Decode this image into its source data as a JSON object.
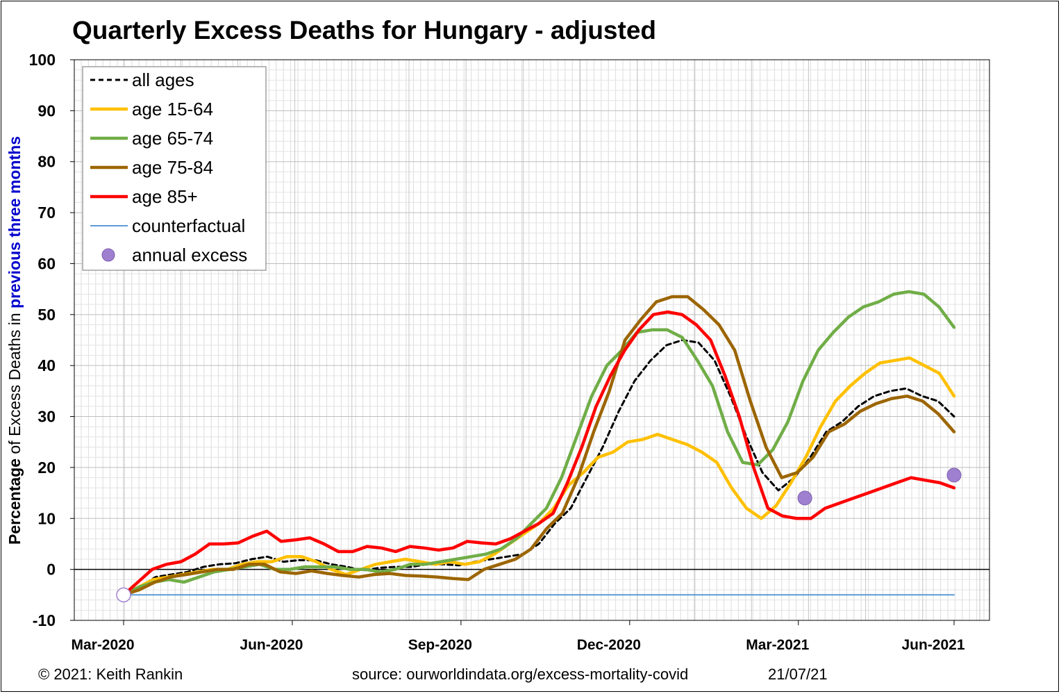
{
  "chart_data": {
    "type": "line",
    "title": "Quarterly Excess Deaths for Hungary - adjusted",
    "ylabel": {
      "bold_part": "Percentage",
      "mid1": " of Excess Deaths in ",
      "highlight": "previous three months"
    },
    "ylim": [
      -10,
      100
    ],
    "yticks": [
      -10,
      0,
      10,
      20,
      30,
      40,
      50,
      60,
      70,
      80,
      90,
      100
    ],
    "xlim": [
      0,
      64
    ],
    "xticks": [
      {
        "label": "Mar-2020",
        "x": 0
      },
      {
        "label": "Jun-2020",
        "x": 13
      },
      {
        "label": "Sep-2020",
        "x": 26
      },
      {
        "label": "Dec-2020",
        "x": 39
      },
      {
        "label": "Mar-2021",
        "x": 52
      },
      {
        "label": "Jun-2021",
        "x": 64
      }
    ],
    "grid": true,
    "legend_position": "top-left",
    "series": [
      {
        "name": "all ages",
        "color": "#000000",
        "style": "dashed",
        "values": [
          -5,
          -3.5,
          -1.5,
          -1,
          -0.5,
          0.5,
          1,
          1.2,
          2,
          2.5,
          1.5,
          1.8,
          1.8,
          1,
          0.5,
          -0.2,
          0.3,
          0.5,
          0.5,
          1,
          1,
          0.8,
          1.5,
          2,
          2.5,
          3,
          5,
          9,
          12,
          18,
          24,
          31,
          37,
          41,
          44,
          45,
          44.5,
          41,
          34,
          26,
          19,
          15.5,
          18,
          22,
          27,
          29,
          32,
          34,
          35,
          35.5,
          34,
          33,
          30
        ]
      },
      {
        "name": "age 15-64",
        "color": "#FFC000",
        "style": "solid",
        "values": [
          -5,
          -3.5,
          -2,
          -1.5,
          -1,
          -0.5,
          0,
          0,
          1,
          1.5,
          1.5,
          2.5,
          2.5,
          1.5,
          0,
          -1,
          0,
          1,
          1.5,
          2,
          1.5,
          1,
          1.5,
          1,
          1.5,
          3,
          5,
          7,
          9,
          12,
          16.5,
          19,
          22,
          23,
          25,
          25.5,
          26.5,
          25.5,
          24.5,
          23,
          21,
          16,
          12,
          10,
          12.5,
          17,
          22,
          28,
          33,
          36,
          38.5,
          40.5,
          41,
          41.5,
          40,
          38.5,
          34
        ]
      },
      {
        "name": "age 65-74",
        "color": "#70AD47",
        "style": "solid",
        "values": [
          -5,
          -3.5,
          -2.5,
          -2,
          -2.5,
          -1.5,
          -0.5,
          0,
          0.5,
          1,
          0,
          0,
          0.5,
          0.5,
          0.5,
          0,
          0,
          -0.5,
          0,
          1,
          1,
          1.5,
          2,
          2.5,
          3,
          4,
          6,
          9,
          12,
          18,
          26,
          34,
          40,
          43,
          46.5,
          47,
          47,
          45.5,
          41,
          36,
          27,
          21,
          20.5,
          23.5,
          29,
          37,
          43,
          46.5,
          49.5,
          51.5,
          52.5,
          54,
          54.5,
          54,
          51.5,
          47.5
        ]
      },
      {
        "name": "age 75-84",
        "color": "#9C6500",
        "style": "solid",
        "values": [
          -5,
          -4,
          -2.5,
          -1.5,
          -1,
          -0.5,
          0,
          0,
          1,
          1,
          -0.5,
          -0.8,
          -0.3,
          -0.8,
          -1.2,
          -1.5,
          -1,
          -0.8,
          -1.2,
          -1.3,
          -1.5,
          -1.8,
          -2,
          0,
          1,
          2,
          4,
          8,
          11,
          18,
          27,
          35,
          45,
          49,
          52.5,
          53.5,
          53.5,
          51,
          48,
          43,
          33,
          24,
          18,
          19,
          22,
          27,
          28.5,
          31,
          32.5,
          33.5,
          34,
          33,
          30.5,
          27
        ]
      },
      {
        "name": "age 85+",
        "color": "#FF0000",
        "style": "solid",
        "values": [
          -5,
          -2.5,
          0,
          1,
          1.5,
          3,
          5,
          5,
          5.2,
          6.5,
          7.5,
          5.5,
          5.8,
          6.2,
          5,
          3.5,
          3.5,
          4.5,
          4.2,
          3.5,
          4.5,
          4.2,
          3.8,
          4.2,
          5.5,
          5.2,
          5,
          6,
          7.5,
          9,
          11,
          17,
          24,
          32,
          38,
          43,
          47,
          50,
          50.5,
          50,
          48,
          45,
          38,
          30,
          20,
          12,
          10.5,
          10,
          10,
          12,
          13,
          14,
          15,
          16,
          17,
          18,
          17.5,
          17,
          16
        ]
      },
      {
        "name": "counterfactual",
        "color": "#5B9BD5",
        "style": "solid",
        "values": [
          -5,
          -5,
          -5,
          -5,
          -5,
          -5,
          -5,
          -5,
          -5,
          -5,
          -5,
          -5,
          -5,
          -5,
          -5,
          -5,
          -5,
          -5,
          -5,
          -5,
          -5,
          -5,
          -5,
          -5,
          -5,
          -5,
          -5,
          -5,
          -5,
          -5,
          -5,
          -5,
          -5,
          -5,
          -5,
          -5,
          -5,
          -5,
          -5,
          -5,
          -5,
          -5,
          -5,
          -5,
          -5,
          -5,
          -5,
          -5,
          -5,
          -5,
          -5,
          -5,
          -5,
          -5,
          -5,
          -5,
          -5,
          -5,
          -5,
          -5,
          -5,
          -5,
          -5,
          -5,
          -5
        ]
      }
    ],
    "annual_excess": {
      "name": "annual excess",
      "color": "#9F7FD0",
      "points": [
        {
          "x": 0,
          "y": -5,
          "hollow": true
        },
        {
          "x": 52.5,
          "y": 14,
          "hollow": false
        },
        {
          "x": 64,
          "y": 18.5,
          "hollow": false
        }
      ]
    }
  },
  "footer": {
    "copyright": "© 2021: Keith Rankin",
    "source": "source: ourworldindata.org/excess-mortality-covid",
    "date": "21/07/21"
  }
}
